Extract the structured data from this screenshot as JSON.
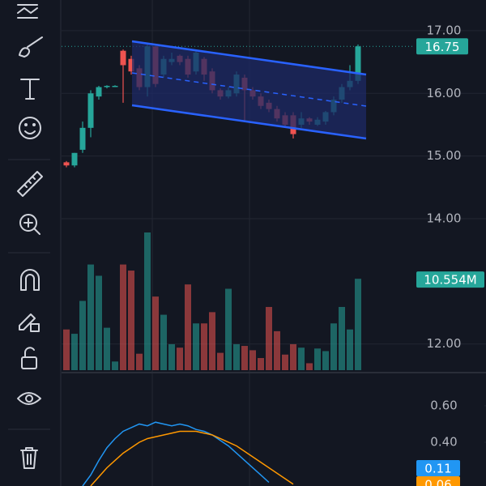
{
  "chart_data": [
    {
      "type": "candlestick",
      "open": [
        14.9,
        14.85,
        15.1,
        15.45,
        15.95,
        16.1,
        16.12,
        16.68,
        16.55,
        16.4,
        16.1,
        16.75,
        16.3,
        16.5,
        16.6,
        16.55,
        16.35,
        16.55,
        16.35,
        16.05,
        15.95,
        16.0,
        16.25,
        16.05,
        15.95,
        15.85,
        15.75,
        15.65,
        15.65,
        15.5,
        15.6,
        15.5,
        15.55,
        15.7,
        15.9,
        16.1,
        16.2
      ],
      "high": [
        14.92,
        15.05,
        15.55,
        16.05,
        16.12,
        16.13,
        16.13,
        16.7,
        16.6,
        16.45,
        16.78,
        16.75,
        16.6,
        16.65,
        16.62,
        16.6,
        16.7,
        16.58,
        16.4,
        16.08,
        16.1,
        16.35,
        16.3,
        16.1,
        16.0,
        15.9,
        15.8,
        15.7,
        15.7,
        15.7,
        15.62,
        15.62,
        15.72,
        15.95,
        16.15,
        16.45,
        16.78
      ],
      "low": [
        14.82,
        14.82,
        15.05,
        15.3,
        15.9,
        16.08,
        16.1,
        15.85,
        16.3,
        16.05,
        15.95,
        16.1,
        16.25,
        16.45,
        16.45,
        16.25,
        16.3,
        16.2,
        16.0,
        15.9,
        15.92,
        15.95,
        15.55,
        15.9,
        15.75,
        15.7,
        15.55,
        15.45,
        15.28,
        15.45,
        15.5,
        15.48,
        15.5,
        15.65,
        15.85,
        16.05,
        16.15
      ],
      "close": [
        14.85,
        15.05,
        15.45,
        16.0,
        16.1,
        16.12,
        16.12,
        16.45,
        16.35,
        16.1,
        16.75,
        16.15,
        16.55,
        16.55,
        16.5,
        16.3,
        16.65,
        16.3,
        16.05,
        15.95,
        16.05,
        16.3,
        16.05,
        15.95,
        15.8,
        15.75,
        15.6,
        15.5,
        15.35,
        15.6,
        15.55,
        15.58,
        15.7,
        15.9,
        16.1,
        16.2,
        16.75
      ],
      "ylim": [
        11.57,
        17.49
      ],
      "yticks": [
        {
          "value": 17,
          "label": "17.00"
        },
        {
          "value": 16,
          "label": "16.00"
        },
        {
          "value": 15,
          "label": "15.00"
        },
        {
          "value": 14,
          "label": "14.00"
        },
        {
          "value": 12,
          "label": "12.00"
        }
      ],
      "last_price": 16.75,
      "up_color": "#26a69a",
      "down_color": "#ef5350",
      "volume": [
        4.7,
        4.2,
        8.0,
        12.2,
        10.9,
        4.9,
        1.0,
        12.2,
        11.5,
        1.9,
        15.9,
        8.5,
        6.4,
        3.0,
        2.6,
        9.9,
        5.4,
        5.4,
        6.7,
        2.0,
        9.4,
        3.0,
        2.8,
        2.3,
        1.4,
        7.3,
        4.5,
        1.8,
        3.0,
        2.6,
        0.8,
        2.5,
        2.2,
        5.4,
        7.3,
        4.7,
        10.554
      ],
      "volume_label": "10.554M"
    },
    {
      "type": "line",
      "series": [
        {
          "color": "#2196f3",
          "last": 0.11,
          "values": [
            null,
            null,
            0.16,
            0.22,
            0.3,
            0.37,
            0.42,
            0.46,
            0.48,
            0.5,
            0.49,
            0.51,
            0.5,
            0.49,
            0.5,
            0.49,
            0.47,
            0.46,
            0.44,
            0.41,
            0.38,
            0.34,
            0.3,
            0.26,
            0.22,
            0.18,
            null,
            null,
            null,
            null,
            null,
            null,
            null,
            null,
            null,
            null,
            null
          ]
        },
        {
          "color": "#ff9800",
          "last": 0.06,
          "values": [
            null,
            null,
            null,
            0.16,
            0.21,
            0.26,
            0.3,
            0.34,
            0.37,
            0.4,
            0.42,
            0.43,
            0.44,
            0.45,
            0.46,
            0.46,
            0.46,
            0.45,
            0.44,
            0.42,
            0.4,
            0.38,
            0.35,
            0.32,
            0.29,
            0.26,
            0.23,
            0.2,
            0.17,
            null,
            null,
            null,
            null,
            null,
            null,
            null,
            null
          ]
        }
      ],
      "ylim": [
        0.16,
        0.773
      ],
      "yticks": [
        {
          "value": 0.6,
          "label": "0.60"
        },
        {
          "value": 0.4,
          "label": "0.40"
        }
      ]
    }
  ]
}
